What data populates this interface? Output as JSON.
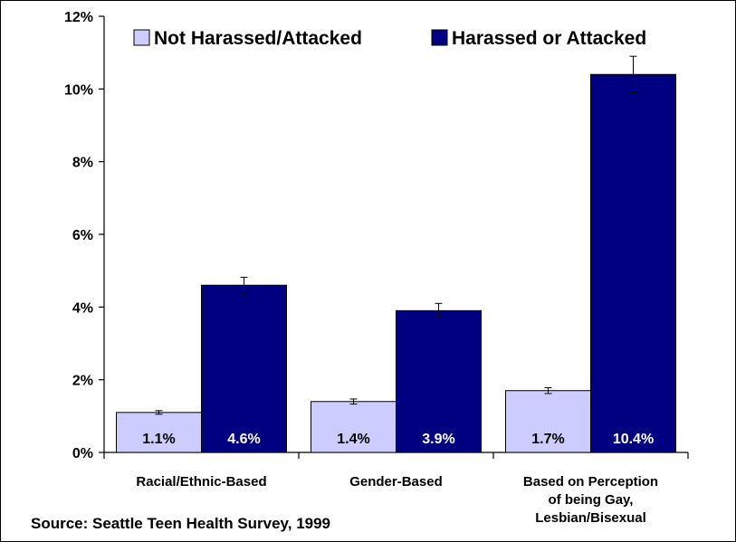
{
  "chart_data": {
    "type": "bar",
    "categories": [
      [
        "Racial/Ethnic-Based"
      ],
      [
        "Gender-Based"
      ],
      [
        "Based on Perception",
        "of being Gay,",
        "Lesbian/Bisexual"
      ]
    ],
    "series": [
      {
        "name": "Not Harassed/Attacked",
        "color": "#ccccff",
        "values": [
          1.1,
          1.4,
          1.7
        ],
        "labels": [
          "1.1%",
          "1.4%",
          "1.7%"
        ],
        "error": [
          0.05,
          0.07,
          0.08
        ]
      },
      {
        "name": "Harassed or Attacked",
        "color": "#000080",
        "values": [
          4.6,
          3.9,
          10.4
        ],
        "labels": [
          "4.6%",
          "3.9%",
          "10.4%"
        ],
        "error": [
          0.22,
          0.2,
          0.5
        ]
      }
    ],
    "ylim": [
      0,
      12
    ],
    "yticks": [
      "0%",
      "2%",
      "4%",
      "6%",
      "8%",
      "10%",
      "12%"
    ],
    "legend_position": "top"
  },
  "source_text": "Source:  Seattle Teen Health Survey, 1999"
}
